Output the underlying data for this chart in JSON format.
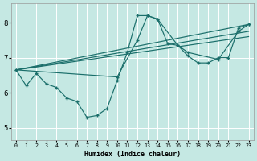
{
  "xlabel": "Humidex (Indice chaleur)",
  "background_color": "#c5e8e3",
  "line_color": "#1a6e6a",
  "grid_color": "#ffffff",
  "xlim": [
    -0.5,
    23.5
  ],
  "ylim": [
    4.65,
    8.55
  ],
  "yticks": [
    5,
    6,
    7,
    8
  ],
  "xticks": [
    0,
    1,
    2,
    3,
    4,
    5,
    6,
    7,
    8,
    9,
    10,
    11,
    12,
    13,
    14,
    15,
    16,
    17,
    18,
    19,
    20,
    21,
    22,
    23
  ],
  "jagged_x": [
    0,
    1,
    2,
    3,
    4,
    5,
    6,
    7,
    8,
    9,
    10,
    11,
    12,
    13,
    14,
    15,
    16,
    17,
    18,
    19,
    20,
    21,
    22,
    23
  ],
  "jagged_y": [
    6.65,
    6.2,
    6.55,
    6.25,
    6.15,
    5.85,
    5.75,
    5.3,
    5.35,
    5.55,
    6.35,
    7.15,
    8.2,
    8.2,
    8.1,
    7.4,
    7.35,
    7.05,
    6.85,
    6.85,
    7.0,
    7.0,
    7.85,
    7.95
  ],
  "smooth1_x": [
    0,
    10,
    12,
    13,
    14,
    16,
    17,
    20,
    22,
    23
  ],
  "smooth1_y": [
    6.65,
    6.45,
    7.5,
    8.2,
    8.1,
    7.35,
    7.15,
    6.95,
    7.75,
    7.95
  ],
  "trend1_x": [
    0,
    23
  ],
  "trend1_y": [
    6.65,
    7.95
  ],
  "trend2_x": [
    0,
    23
  ],
  "trend2_y": [
    6.65,
    7.75
  ],
  "trend3_x": [
    0,
    23
  ],
  "trend3_y": [
    6.65,
    7.6
  ]
}
